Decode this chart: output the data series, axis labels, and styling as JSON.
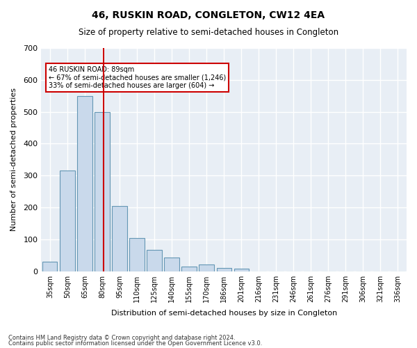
{
  "title1": "46, RUSKIN ROAD, CONGLETON, CW12 4EA",
  "title2": "Size of property relative to semi-detached houses in Congleton",
  "xlabel": "Distribution of semi-detached houses by size in Congleton",
  "ylabel": "Number of semi-detached properties",
  "footer1": "Contains HM Land Registry data © Crown copyright and database right 2024.",
  "footer2": "Contains public sector information licensed under the Open Government Licence v3.0.",
  "bin_labels": [
    "35sqm",
    "50sqm",
    "65sqm",
    "80sqm",
    "95sqm",
    "110sqm",
    "125sqm",
    "140sqm",
    "155sqm",
    "170sqm",
    "186sqm",
    "201sqm",
    "216sqm",
    "231sqm",
    "246sqm",
    "261sqm",
    "276sqm",
    "291sqm",
    "306sqm",
    "321sqm",
    "336sqm"
  ],
  "bar_values": [
    30,
    315,
    550,
    500,
    205,
    103,
    67,
    43,
    15,
    20,
    10,
    8,
    0,
    0,
    0,
    0,
    0,
    0,
    0,
    0,
    0
  ],
  "bar_color": "#c9d9eb",
  "bar_edge_color": "#6496b4",
  "property_size_sqm": 89,
  "property_bin_index": 3,
  "vline_color": "#cc0000",
  "annotation_text": "46 RUSKIN ROAD: 89sqm\n← 67% of semi-detached houses are smaller (1,246)\n33% of semi-detached houses are larger (604) →",
  "annotation_box_color": "white",
  "annotation_box_edge": "#cc0000",
  "ylim": [
    0,
    700
  ],
  "background_color": "#e8eef5",
  "grid_color": "white"
}
